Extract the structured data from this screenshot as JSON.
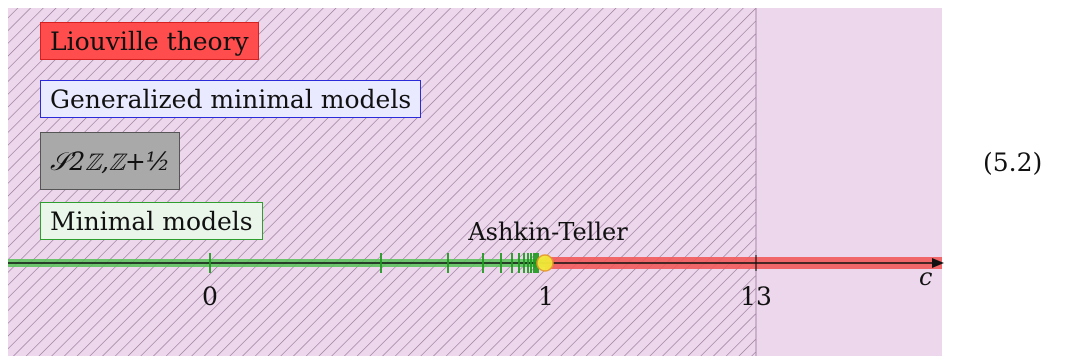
{
  "legend": [
    {
      "key": "liouville",
      "label": "Liouville theory",
      "fill": "#ff4d4d",
      "border": "#d62020"
    },
    {
      "key": "generalized",
      "label": "Generalized minimal models",
      "fill": "#e9e9ff",
      "border": "#2b2bd9"
    },
    {
      "key": "s_sector",
      "label": "𝒮",
      "sub_label": "2ℤ,ℤ+½",
      "fill": "#a9a9a9",
      "border": "#555555"
    },
    {
      "key": "minimal",
      "label": "Minimal models",
      "fill": "#eaf6ea",
      "border": "#2e9e2e"
    }
  ],
  "axis": {
    "name": "c",
    "ticks": [
      "0",
      "1",
      "13"
    ]
  },
  "annotation": "Ashkin-Teller",
  "equation_number": "(5.2)",
  "colors": {
    "region_purple": "#ecd7ec",
    "hatch": "#8a6a8a",
    "liouville_band": "#f25a5a",
    "minimal_band": "#56c256",
    "minimal_ticks": "#1c9a1c",
    "ashkin_dot": "#f3e838"
  }
}
